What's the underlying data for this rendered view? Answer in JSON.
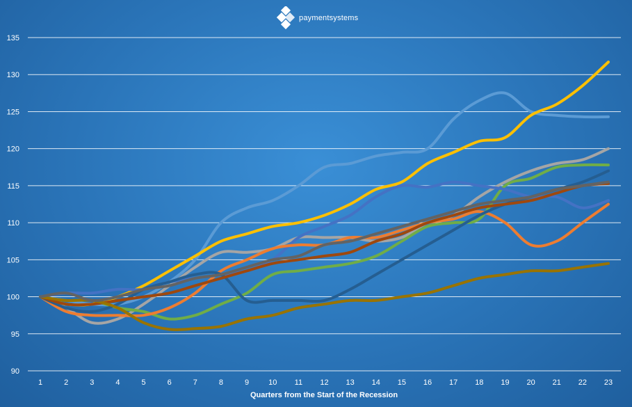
{
  "brand": {
    "name": "paymentsystems",
    "logo_icon": "diamond-cluster-icon"
  },
  "chart_data": {
    "type": "line",
    "title": "",
    "xlabel": "Quarters  from the Start of the Recession",
    "ylabel": "",
    "x": [
      1,
      2,
      3,
      4,
      5,
      6,
      7,
      8,
      9,
      10,
      11,
      12,
      13,
      14,
      15,
      16,
      17,
      18,
      19,
      20,
      21,
      22,
      23
    ],
    "ylim": [
      90,
      135
    ],
    "yticks": [
      90,
      95,
      100,
      105,
      110,
      115,
      120,
      125,
      130,
      135
    ],
    "grid": true,
    "legend": "none",
    "series": [
      {
        "color": "#5b9bd5",
        "values": [
          100,
          99.5,
          99,
          99,
          100,
          102,
          105,
          110,
          112,
          113,
          115,
          117.5,
          118,
          119,
          119.5,
          120,
          124,
          126.5,
          127.5,
          125,
          124.5,
          124.3,
          124.3
        ]
      },
      {
        "color": "#ffc000",
        "values": [
          100,
          99,
          99,
          100,
          101.5,
          103.5,
          105.5,
          107.5,
          108.5,
          109.5,
          110,
          111,
          112.5,
          114.5,
          115.5,
          118,
          119.5,
          121,
          121.5,
          124.5,
          126,
          128.5,
          131.7
        ]
      },
      {
        "color": "#a5a5a5",
        "values": [
          100,
          98.5,
          96.5,
          97,
          99,
          101.5,
          104,
          106,
          106,
          106.5,
          108,
          108,
          108,
          107.5,
          108,
          110,
          111,
          113.5,
          115.5,
          117,
          118,
          118.5,
          120
        ]
      },
      {
        "color": "#70ad47",
        "values": [
          100,
          99.5,
          99.5,
          98.5,
          98,
          97,
          97.5,
          99,
          100.5,
          103,
          103.5,
          104,
          104.5,
          105.5,
          107.5,
          109.5,
          110,
          110.5,
          115,
          116,
          117.5,
          117.8,
          117.8
        ]
      },
      {
        "color": "#4472c4",
        "values": [
          100,
          100.5,
          100.5,
          101,
          101,
          102,
          102.5,
          103,
          103.5,
          105,
          108,
          109.5,
          111,
          113.5,
          115,
          114.8,
          115.5,
          115,
          114.5,
          113.5,
          113.5,
          112,
          113
        ]
      },
      {
        "color": "#ed7d31",
        "values": [
          100,
          98,
          97.5,
          97.5,
          97.5,
          98.5,
          100.5,
          103.5,
          105,
          106.5,
          107,
          107,
          108,
          108,
          109,
          110,
          110.5,
          111.5,
          110,
          107,
          107.5,
          110,
          112.5
        ]
      },
      {
        "color": "#255e91",
        "values": [
          100,
          98.5,
          98,
          99,
          101,
          102,
          103,
          103,
          99.5,
          99.5,
          99.5,
          99.5,
          101,
          103,
          105,
          107,
          109,
          111,
          112.5,
          113.5,
          114.5,
          115.5,
          117
        ]
      },
      {
        "color": "#9e480e",
        "values": [
          100,
          99,
          99,
          99.5,
          100,
          100.5,
          101.5,
          102.5,
          103.5,
          104.5,
          105,
          105.5,
          106,
          107.5,
          108.5,
          110,
          111,
          112,
          112.5,
          113,
          114,
          115,
          115.3
        ]
      },
      {
        "color": "#997300",
        "values": [
          100,
          99.5,
          99.5,
          98.5,
          96.5,
          95.6,
          95.7,
          96,
          97,
          97.5,
          98.5,
          99,
          99.5,
          99.5,
          100,
          100.5,
          101.5,
          102.5,
          103,
          103.5,
          103.5,
          104,
          104.5
        ]
      },
      {
        "color": "#636363",
        "values": [
          100,
          100.5,
          99.5,
          100,
          101,
          101.5,
          102.5,
          103,
          104,
          105,
          105.5,
          107,
          107.5,
          108.5,
          109.5,
          110.5,
          111.5,
          112.5,
          113,
          113.5,
          114.5,
          115,
          115.5
        ]
      }
    ]
  }
}
